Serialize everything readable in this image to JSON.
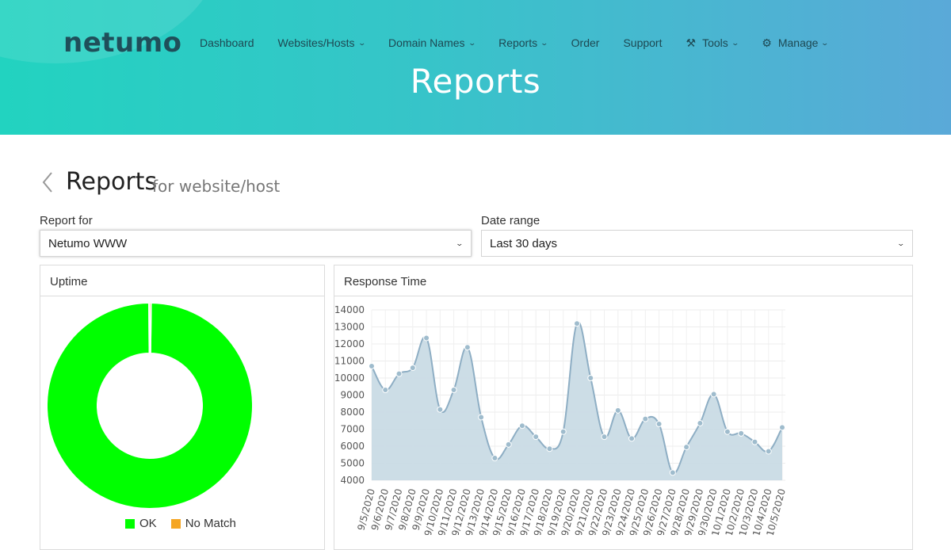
{
  "header": {
    "logo_text": "netumo",
    "page_heading": "Reports",
    "nav": [
      {
        "label": "Dashboard",
        "has_chevron": false,
        "icon": ""
      },
      {
        "label": "Websites/Hosts",
        "has_chevron": true,
        "icon": ""
      },
      {
        "label": "Domain Names",
        "has_chevron": true,
        "icon": ""
      },
      {
        "label": "Reports",
        "has_chevron": true,
        "icon": ""
      },
      {
        "label": "Order",
        "has_chevron": false,
        "icon": ""
      },
      {
        "label": "Support",
        "has_chevron": false,
        "icon": ""
      },
      {
        "label": "Tools",
        "has_chevron": true,
        "icon": "tools-icon"
      },
      {
        "label": "Manage",
        "has_chevron": true,
        "icon": "gear-icon"
      }
    ]
  },
  "page": {
    "title": "Reports",
    "subtitle": "for website/host"
  },
  "filters": {
    "report_for_label": "Report for",
    "report_for_value": "Netumo WWW",
    "date_range_label": "Date range",
    "date_range_value": "Last 30 days"
  },
  "uptime_panel": {
    "title": "Uptime",
    "legend": [
      {
        "label": "OK",
        "color": "#00ff00"
      },
      {
        "label": "No Match",
        "color": "#f5a623"
      }
    ]
  },
  "response_panel": {
    "title": "Response Time"
  },
  "colors": {
    "line": "#8eaec4",
    "fill": "#c9dbe5",
    "ok": "#00ff00",
    "no_match": "#f5a623"
  },
  "chart_data": [
    {
      "type": "pie",
      "variant": "donut",
      "categories": [
        "OK",
        "No Match"
      ],
      "values": [
        99.7,
        0.3
      ],
      "title": "Uptime"
    },
    {
      "type": "area",
      "title": "Response Time",
      "xlabel": "",
      "ylabel": "",
      "ylim": [
        4000,
        14000
      ],
      "yticks": [
        4000,
        5000,
        6000,
        7000,
        8000,
        9000,
        10000,
        11000,
        12000,
        13000,
        14000
      ],
      "grid": true,
      "categories": [
        "9/5/2020",
        "9/6/2020",
        "9/7/2020",
        "9/8/2020",
        "9/9/2020",
        "9/10/2020",
        "9/11/2020",
        "9/12/2020",
        "9/13/2020",
        "9/14/2020",
        "9/15/2020",
        "9/16/2020",
        "9/17/2020",
        "9/18/2020",
        "9/19/2020",
        "9/20/2020",
        "9/21/2020",
        "9/22/2020",
        "9/23/2020",
        "9/24/2020",
        "9/25/2020",
        "9/26/2020",
        "9/27/2020",
        "9/28/2020",
        "9/29/2020",
        "9/30/2020",
        "10/1/2020",
        "10/2/2020",
        "10/3/2020",
        "10/4/2020",
        "10/5/2020"
      ],
      "values": [
        10700,
        9300,
        10250,
        10600,
        12350,
        8150,
        9300,
        11800,
        7700,
        5300,
        6100,
        7200,
        6550,
        5850,
        6850,
        13200,
        10000,
        6550,
        8100,
        6450,
        7600,
        7300,
        4450,
        5950,
        7350,
        9050,
        6850,
        6750,
        6250,
        5700,
        7100
      ]
    }
  ]
}
